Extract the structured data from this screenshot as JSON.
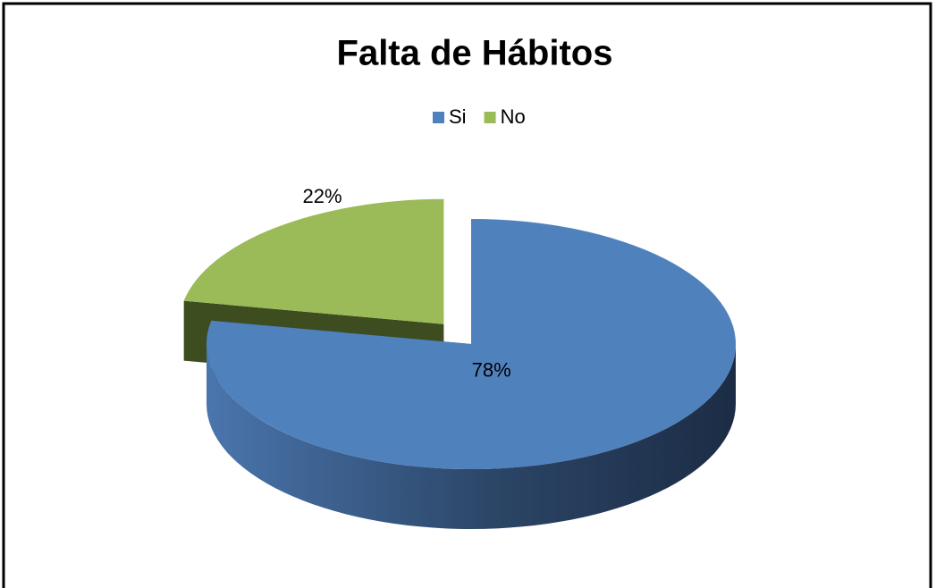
{
  "chart_data": {
    "type": "pie",
    "title": "Falta de Hábitos",
    "categories": [
      "Si",
      "No"
    ],
    "values": [
      78,
      22
    ],
    "value_labels": [
      "78%",
      "22%"
    ],
    "colors": [
      "#4f81bd",
      "#9bbb59"
    ],
    "legend": "top"
  }
}
